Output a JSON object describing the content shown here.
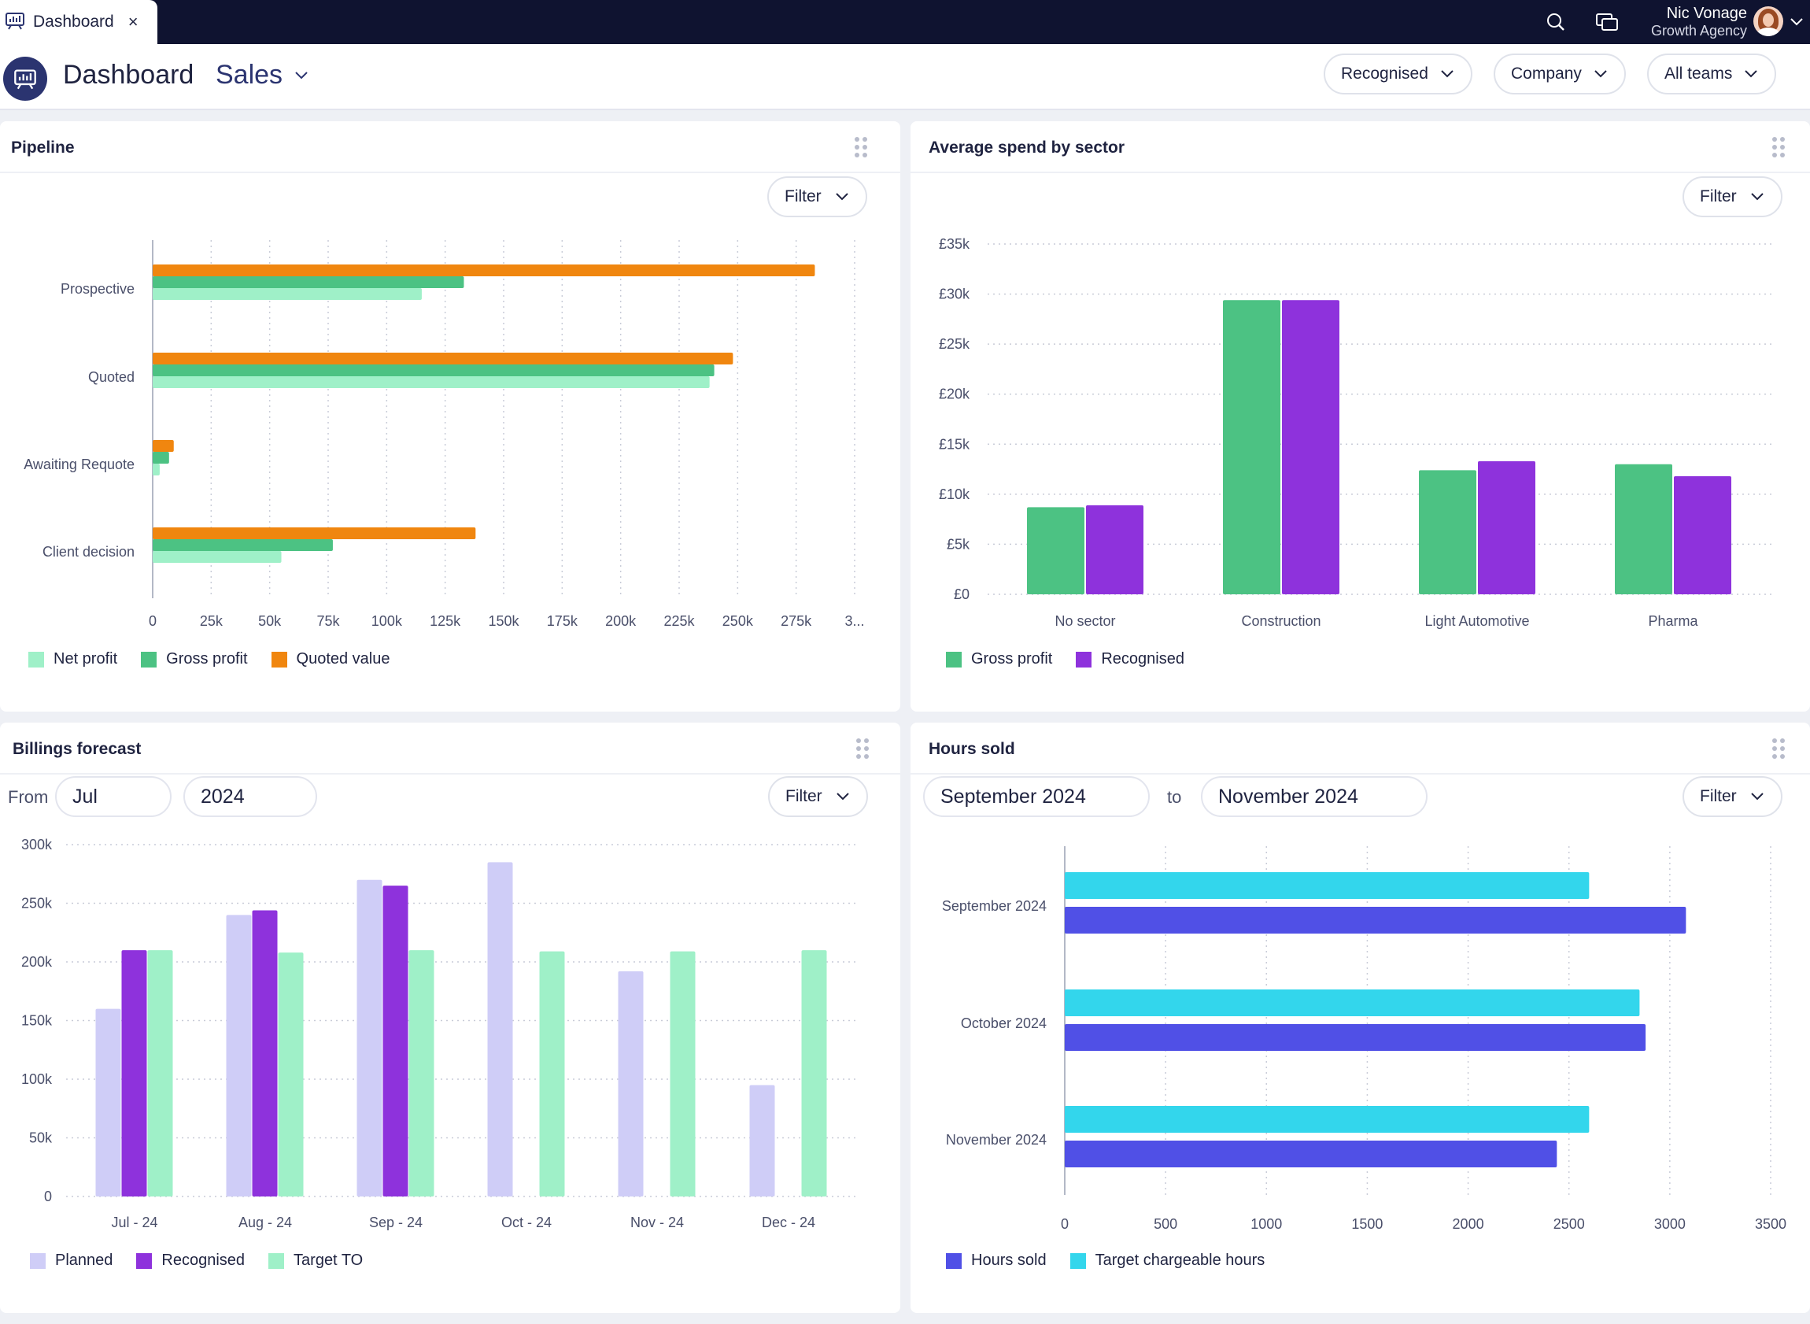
{
  "tab": {
    "label": "Dashboard",
    "close": "×"
  },
  "user": {
    "name": "Nic Vonage",
    "org": "Growth Agency"
  },
  "header": {
    "title": "Dashboard",
    "subtitle": "Sales",
    "pills": [
      "Recognised",
      "Company",
      "All teams"
    ]
  },
  "colors": {
    "orange": "#f0860f",
    "green": "#4cc283",
    "light_green": "#9ff0c8",
    "purple": "#8e32dc",
    "lavender": "#cfcdf7",
    "cyan": "#33d6ec",
    "indigo": "#5050e6"
  },
  "pipeline": {
    "title": "Pipeline",
    "filter": "Filter",
    "chart_data": {
      "type": "bar",
      "orientation": "horizontal",
      "categories": [
        "Prospective",
        "Quoted",
        "Awaiting Requote",
        "Client decision"
      ],
      "series": [
        {
          "name": "Quoted value",
          "color": "#f0860f",
          "values": [
            283000,
            248000,
            9000,
            138000
          ]
        },
        {
          "name": "Gross profit",
          "color": "#4cc283",
          "values": [
            133000,
            240000,
            7000,
            77000
          ]
        },
        {
          "name": "Net profit",
          "color": "#9ff0c8",
          "values": [
            115000,
            238000,
            3000,
            55000
          ]
        }
      ],
      "xticks": [
        "0",
        "25k",
        "50k",
        "75k",
        "100k",
        "125k",
        "150k",
        "175k",
        "200k",
        "225k",
        "250k",
        "275k",
        "3..."
      ],
      "xlim": [
        0,
        300000
      ],
      "legend": [
        "Net profit",
        "Gross profit",
        "Quoted value"
      ],
      "legend_colors": [
        "#9ff0c8",
        "#4cc283",
        "#f0860f"
      ]
    }
  },
  "avg_spend": {
    "title": "Average spend by sector",
    "filter": "Filter",
    "chart_data": {
      "type": "bar",
      "categories": [
        "No sector",
        "Construction",
        "Light Automotive",
        "Pharma"
      ],
      "series": [
        {
          "name": "Gross profit",
          "color": "#4cc283",
          "values": [
            8700,
            29400,
            12400,
            13000
          ]
        },
        {
          "name": "Recognised",
          "color": "#8e32dc",
          "values": [
            8900,
            29400,
            13300,
            11800
          ]
        }
      ],
      "yticks": [
        "£0",
        "£5k",
        "£10k",
        "£15k",
        "£20k",
        "£25k",
        "£30k",
        "£35k"
      ],
      "ylim": [
        0,
        35000
      ],
      "legend": [
        "Gross profit",
        "Recognised"
      ],
      "legend_colors": [
        "#4cc283",
        "#8e32dc"
      ]
    }
  },
  "billings": {
    "title": "Billings forecast",
    "from_label": "From",
    "month": "Jul",
    "year": "2024",
    "filter": "Filter",
    "chart_data": {
      "type": "bar",
      "categories": [
        "Jul - 24",
        "Aug - 24",
        "Sep - 24",
        "Oct - 24",
        "Nov - 24",
        "Dec - 24"
      ],
      "series": [
        {
          "name": "Planned",
          "color": "#cfcdf7",
          "values": [
            160000,
            240000,
            270000,
            285000,
            192000,
            95000
          ]
        },
        {
          "name": "Recognised",
          "color": "#8e32dc",
          "values": [
            210000,
            244000,
            265000,
            0,
            0,
            0
          ]
        },
        {
          "name": "Target TO",
          "color": "#9ff0c8",
          "values": [
            210000,
            208000,
            210000,
            209000,
            209000,
            210000
          ]
        }
      ],
      "yticks": [
        "0",
        "50k",
        "100k",
        "150k",
        "200k",
        "250k",
        "300k"
      ],
      "ylim": [
        0,
        300000
      ],
      "legend": [
        "Planned",
        "Recognised",
        "Target TO"
      ],
      "legend_colors": [
        "#cfcdf7",
        "#8e32dc",
        "#9ff0c8"
      ]
    }
  },
  "hours": {
    "title": "Hours sold",
    "from_value": "September 2024",
    "to_label": "to",
    "to_value": "November 2024",
    "filter": "Filter",
    "chart_data": {
      "type": "bar",
      "orientation": "horizontal",
      "categories": [
        "September 2024",
        "October 2024",
        "November 2024"
      ],
      "series": [
        {
          "name": "Target chargeable hours",
          "color": "#33d6ec",
          "values": [
            2600,
            2850,
            2600
          ]
        },
        {
          "name": "Hours sold",
          "color": "#5050e6",
          "values": [
            3080,
            2880,
            2440
          ]
        }
      ],
      "xticks": [
        "0",
        "500",
        "1000",
        "1500",
        "2000",
        "2500",
        "3000",
        "3500"
      ],
      "xlim": [
        0,
        3500
      ],
      "legend": [
        "Hours sold",
        "Target chargeable hours"
      ],
      "legend_colors": [
        "#5050e6",
        "#33d6ec"
      ]
    }
  }
}
